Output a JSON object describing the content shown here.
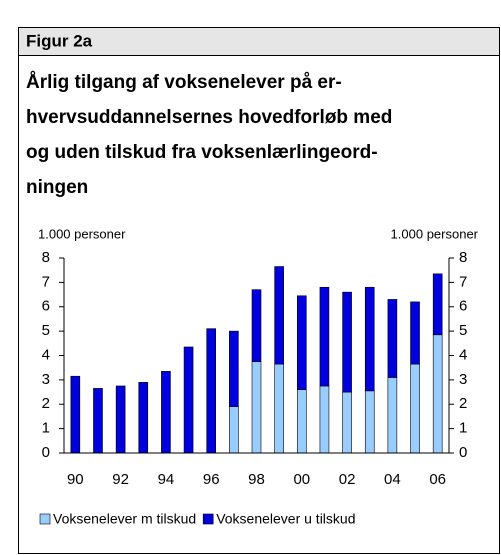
{
  "chart_data": {
    "type": "stacked_bar",
    "label": "Figur 2a",
    "title": [
      "Årlig tilgang af voksenelever på er-",
      "hvervsuddannelsernes hovedforløb med",
      "og uden tilskud fra voksenlærlingeord-",
      "ningen"
    ],
    "y_label": "1.000 personer",
    "y2_label": "1.000 personer",
    "categories": [
      "90",
      null,
      "92",
      null,
      "94",
      null,
      "96",
      null,
      "98",
      null,
      "00",
      null,
      "02",
      null,
      "04",
      null,
      "06"
    ],
    "series": [
      {
        "name": "Voksenelever m tilskud",
        "color": "#99ccff",
        "values": [
          0,
          0,
          0,
          0,
          0,
          0,
          0,
          1.9,
          3.75,
          3.65,
          2.6,
          2.75,
          2.5,
          2.55,
          3.1,
          3.65,
          4.85
        ]
      },
      {
        "name": "Voksenelever u tilskud",
        "color": "#0000dd",
        "values": [
          3.15,
          2.65,
          2.75,
          2.9,
          3.35,
          4.35,
          5.1,
          3.1,
          2.95,
          4.0,
          3.85,
          4.05,
          4.1,
          4.25,
          3.2,
          2.55,
          2.5
        ]
      }
    ],
    "ylim": [
      0,
      8
    ],
    "yticks": [
      0,
      1,
      2,
      3,
      4,
      5,
      6,
      7,
      8
    ],
    "y2lim": [
      0,
      8
    ],
    "y2ticks": [
      0,
      1,
      2,
      3,
      4,
      5,
      6,
      7,
      8
    ]
  }
}
